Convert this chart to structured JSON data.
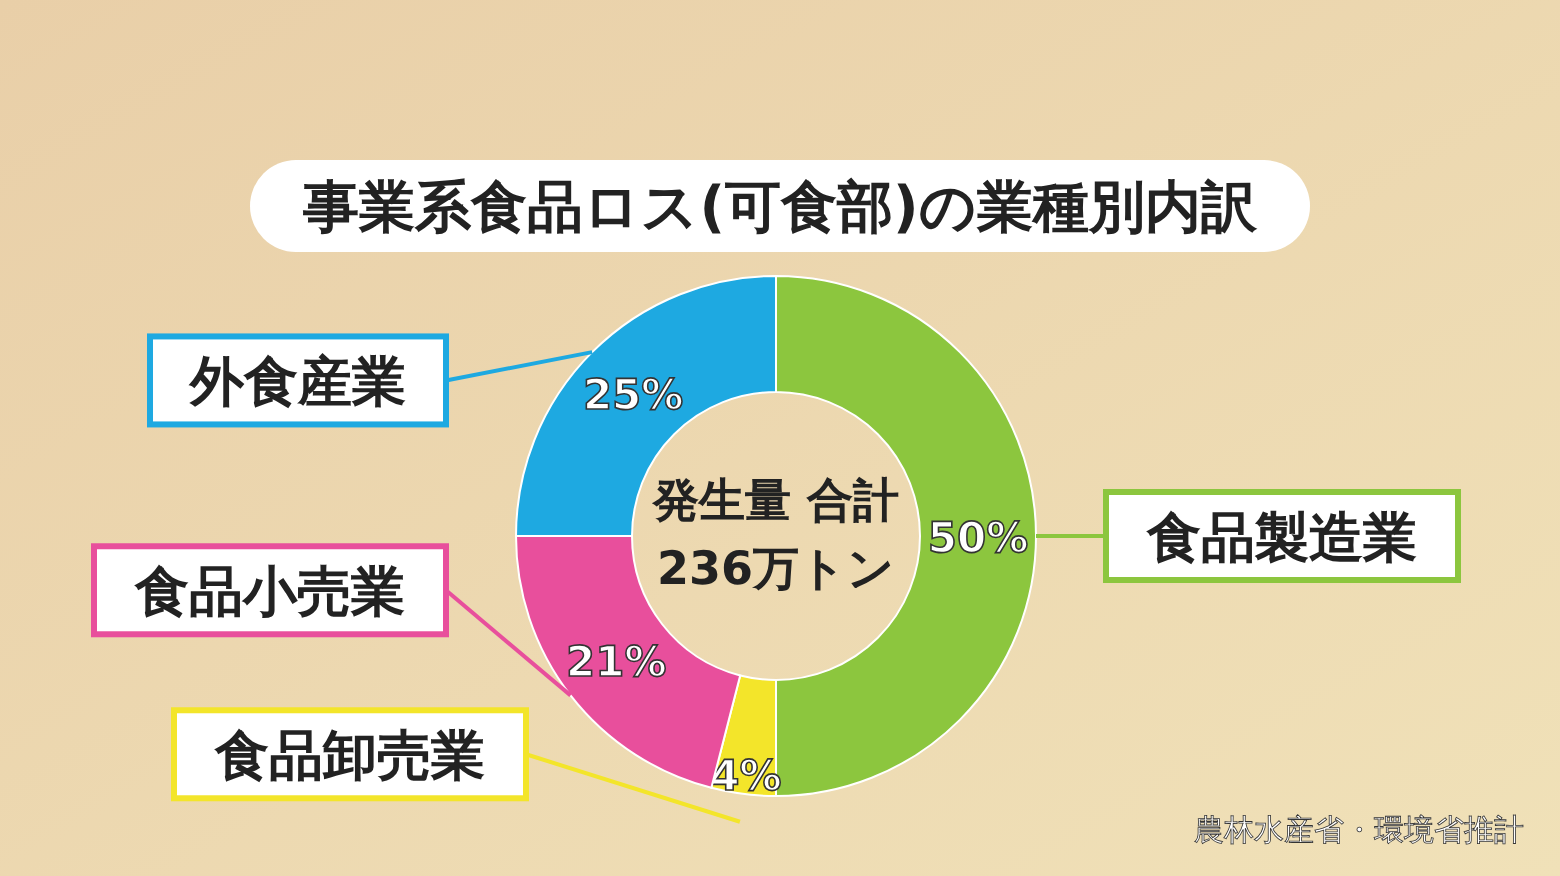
{
  "chart_data": {
    "type": "donut",
    "title": "事業系食品ロス(可食部)の業種別内訳",
    "categories": [
      "食品製造業",
      "食品卸売業",
      "食品小売業",
      "外食産業"
    ],
    "values": [
      50,
      4,
      21,
      25
    ],
    "colors": [
      "#8cc63e",
      "#f3e52a",
      "#e84f9c",
      "#1ea9e1"
    ],
    "value_labels": [
      "50%",
      "4%",
      "21%",
      "25%"
    ],
    "annotations": [
      "発生量 合計",
      "236万トン",
      "農林水産省・環境省推計"
    ]
  }
}
